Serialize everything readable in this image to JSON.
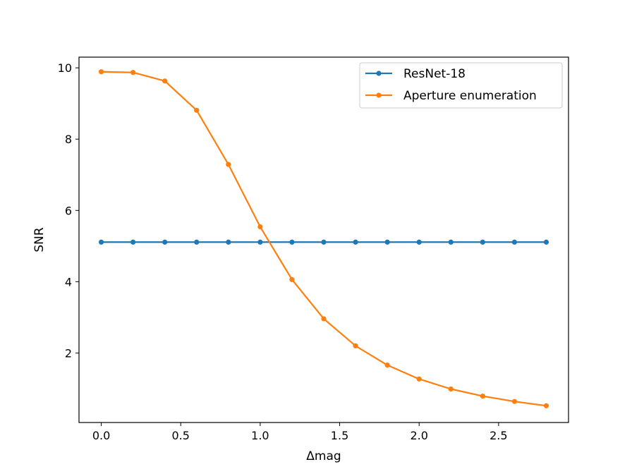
{
  "chart_data": {
    "type": "line",
    "title": "",
    "xlabel": "Δmag",
    "ylabel": "SNR",
    "xlim": [
      -0.14,
      2.94
    ],
    "ylim": [
      0.05,
      10.3
    ],
    "x_ticks": [
      0.0,
      0.5,
      1.0,
      1.5,
      2.0,
      2.5
    ],
    "x_tick_labels": [
      "0.0",
      "0.5",
      "1.0",
      "1.5",
      "2.0",
      "2.5"
    ],
    "y_ticks": [
      2,
      4,
      6,
      8,
      10
    ],
    "y_tick_labels": [
      "2",
      "4",
      "6",
      "8",
      "10"
    ],
    "grid": false,
    "legend_position": "upper-right",
    "x": [
      0.0,
      0.2,
      0.4,
      0.6,
      0.8,
      1.0,
      1.2,
      1.4,
      1.6,
      1.8,
      2.0,
      2.2,
      2.4,
      2.6,
      2.8
    ],
    "series": [
      {
        "name": "ResNet-18",
        "color": "#1f77b4",
        "values": [
          5.11,
          5.11,
          5.11,
          5.11,
          5.11,
          5.11,
          5.11,
          5.11,
          5.11,
          5.11,
          5.11,
          5.11,
          5.11,
          5.11,
          5.11
        ]
      },
      {
        "name": "Aperture enumeration",
        "color": "#ff7f0e",
        "values": [
          9.89,
          9.87,
          9.63,
          8.81,
          7.29,
          5.54,
          4.06,
          2.96,
          2.2,
          1.66,
          1.27,
          0.99,
          0.79,
          0.64,
          0.52
        ]
      }
    ]
  }
}
